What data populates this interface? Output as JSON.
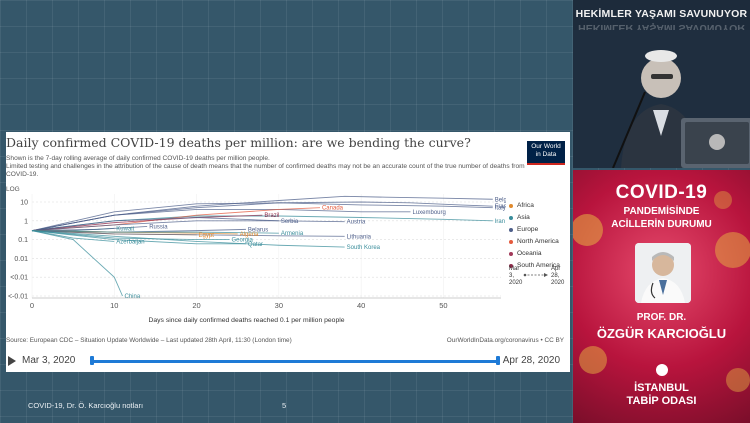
{
  "slide": {
    "title": "Daily confirmed COVID-19 deaths per million: are we bending the curve?",
    "description_1": "Shown is the 7-day rolling average of daily confirmed COVID-19 deaths per million people.",
    "description_2": "Limited testing and challenges in the attribution of the cause of death means that the number of confirmed deaths may not be an accurate count of the true number of deaths from COVID-19.",
    "logo_line_1": "Our World",
    "logo_line_2": "in Data",
    "source": "Source: European CDC – Situation Update Worldwide – Last updated 28th April, 11:30 (London time)",
    "license": "OurWorldInData.org/coronavirus • CC BY",
    "footer_left": "COVID-19, Dr. Ö. Karcıoğlu notları",
    "page_number": "5"
  },
  "timeline": {
    "start_date": "Mar 3, 2020",
    "end_date": "Apr 28, 2020"
  },
  "legend": {
    "items": [
      {
        "label": "Africa",
        "color": "#e08a2e"
      },
      {
        "label": "Asia",
        "color": "#3a8d9b"
      },
      {
        "label": "Europe",
        "color": "#4e5f8a"
      },
      {
        "label": "North America",
        "color": "#e45a3d"
      },
      {
        "label": "Oceania",
        "color": "#a23a5a"
      },
      {
        "label": "South America",
        "color": "#8f2a4a"
      }
    ],
    "range_start_label": "Mar",
    "range_start_day": "3,",
    "range_start_year": "2020",
    "range_end_label": "Apr",
    "range_end_day": "28,",
    "range_end_year": "2020"
  },
  "chart_data": {
    "type": "line",
    "yscale": "log",
    "yaxis_top_label": "LOG",
    "xlabel": "Days since daily confirmed deaths reached 0.1 per million people",
    "ylabel": "",
    "xlim": [
      0,
      57
    ],
    "x_ticks": [
      "0",
      "10",
      "20",
      "30",
      "40",
      "50"
    ],
    "y_ticks": [
      "10",
      "1",
      "0.1",
      "0.01",
      "<0.01",
      "<-0.01"
    ],
    "series": [
      {
        "name": "Belgium",
        "color": "#4e5f8a",
        "x": [
          0,
          10,
          20,
          30,
          38,
          43,
          50,
          56
        ],
        "y": [
          0.3,
          2,
          6,
          12,
          20,
          18,
          16,
          14
        ]
      },
      {
        "name": "France",
        "color": "#4e5f8a",
        "x": [
          0,
          10,
          20,
          30,
          40,
          46,
          52,
          56
        ],
        "y": [
          0.3,
          2,
          5,
          9,
          10,
          9,
          7,
          6
        ]
      },
      {
        "name": "Italy",
        "color": "#4e5f8a",
        "x": [
          0,
          10,
          20,
          30,
          40,
          50,
          56
        ],
        "y": [
          0.3,
          3,
          8,
          9,
          7,
          6,
          5
        ]
      },
      {
        "name": "Luxembourg",
        "color": "#4e5f8a",
        "x": [
          0,
          10,
          20,
          30,
          40,
          46
        ],
        "y": [
          0.3,
          2,
          4,
          4,
          3,
          3
        ]
      },
      {
        "name": "Iran",
        "color": "#3a8d9b",
        "x": [
          0,
          10,
          20,
          30,
          40,
          50,
          56
        ],
        "y": [
          0.3,
          1,
          1.8,
          1.8,
          1.5,
          1.2,
          1
        ]
      },
      {
        "name": "Canada",
        "color": "#e45a3d",
        "x": [
          0,
          10,
          20,
          30,
          35
        ],
        "y": [
          0.3,
          0.6,
          2,
          4,
          5
        ]
      },
      {
        "name": "Brazil",
        "color": "#8f2a4a",
        "x": [
          0,
          10,
          20,
          28
        ],
        "y": [
          0.3,
          0.8,
          1.5,
          2
        ]
      },
      {
        "name": "Serbia",
        "color": "#4e5f8a",
        "x": [
          0,
          10,
          20,
          30
        ],
        "y": [
          0.3,
          0.6,
          1,
          1
        ]
      },
      {
        "name": "Austria",
        "color": "#4e5f8a",
        "x": [
          0,
          10,
          20,
          30,
          38
        ],
        "y": [
          0.3,
          1,
          1.5,
          1,
          0.9
        ]
      },
      {
        "name": "Kuwait",
        "color": "#3a8d9b",
        "x": [
          0,
          5,
          10
        ],
        "y": [
          0.3,
          0.3,
          0.4
        ]
      },
      {
        "name": "Russia",
        "color": "#4e5f8a",
        "x": [
          0,
          8,
          14
        ],
        "y": [
          0.3,
          0.35,
          0.5
        ]
      },
      {
        "name": "Belarus",
        "color": "#4e5f8a",
        "x": [
          0,
          10,
          20,
          26
        ],
        "y": [
          0.3,
          0.25,
          0.3,
          0.35
        ]
      },
      {
        "name": "Algeria",
        "color": "#e08a2e",
        "x": [
          0,
          10,
          20,
          25
        ],
        "y": [
          0.3,
          0.25,
          0.22,
          0.2
        ]
      },
      {
        "name": "Egypt",
        "color": "#e08a2e",
        "x": [
          0,
          10,
          20
        ],
        "y": [
          0.3,
          0.2,
          0.18
        ]
      },
      {
        "name": "Armenia",
        "color": "#3a8d9b",
        "x": [
          0,
          10,
          20,
          30
        ],
        "y": [
          0.3,
          0.25,
          0.25,
          0.22
        ]
      },
      {
        "name": "Lithuania",
        "color": "#4e5f8a",
        "x": [
          0,
          10,
          20,
          30,
          38
        ],
        "y": [
          0.3,
          0.2,
          0.18,
          0.16,
          0.15
        ]
      },
      {
        "name": "Azerbaijan",
        "color": "#3a8d9b",
        "x": [
          0,
          5,
          10
        ],
        "y": [
          0.3,
          0.12,
          0.08
        ]
      },
      {
        "name": "Georgia",
        "color": "#3a8d9b",
        "x": [
          0,
          10,
          20,
          24
        ],
        "y": [
          0.3,
          0.12,
          0.1,
          0.1
        ]
      },
      {
        "name": "Qatar",
        "color": "#3a8d9b",
        "x": [
          0,
          10,
          20,
          26
        ],
        "y": [
          0.3,
          0.1,
          0.06,
          0.06
        ]
      },
      {
        "name": "South Korea",
        "color": "#3a8d9b",
        "x": [
          0,
          10,
          20,
          30,
          38
        ],
        "y": [
          0.3,
          0.15,
          0.08,
          0.05,
          0.04
        ]
      },
      {
        "name": "China",
        "color": "#3a8d9b",
        "x": [
          0,
          5,
          10,
          11
        ],
        "y": [
          0.3,
          0.1,
          0.001,
          0.0001
        ]
      }
    ]
  },
  "video": {
    "banner": "HEKİMLER YAŞAMI SAVUNUYOR"
  },
  "poster": {
    "title": "COVID-19",
    "line_1": "PANDEMİSİNDE",
    "line_2": "ACİLLERİN DURUMU",
    "prof": "PROF. DR.",
    "name": "ÖZGÜR KARCIOĞLU",
    "org_1": "İSTANBUL",
    "org_2": "TABİP ODASI"
  }
}
